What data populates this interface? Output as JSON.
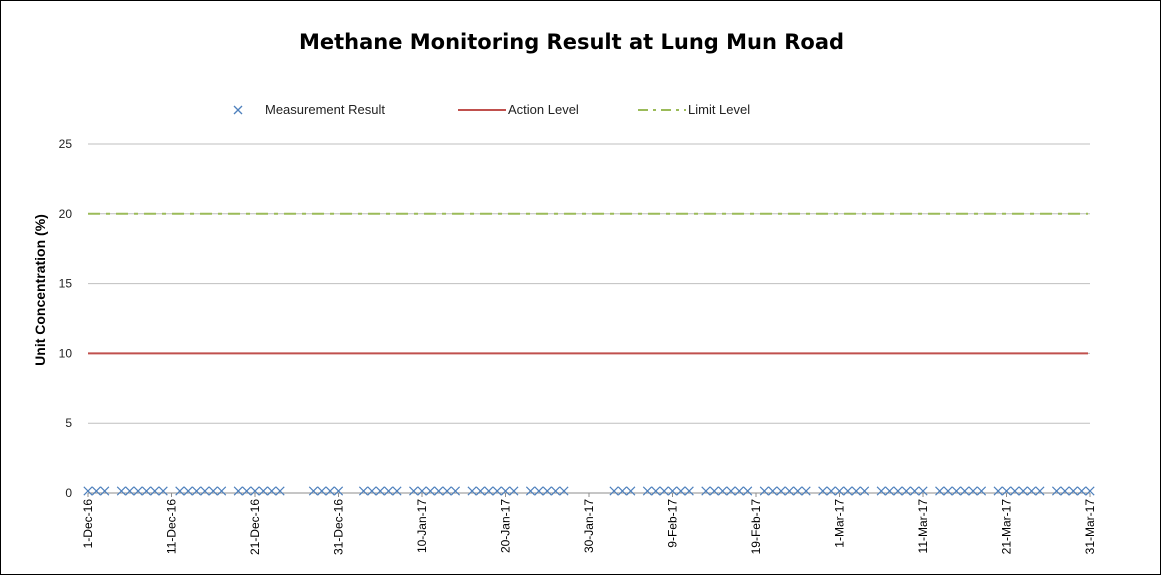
{
  "chart_data": {
    "type": "line",
    "title": "Methane Monitoring Result at Lung Mun Road",
    "xlabel": "",
    "ylabel": "Unit Concentration (%)",
    "ylim": [
      0,
      25
    ],
    "yticks": [
      "0",
      "5",
      "10",
      "15",
      "20",
      "25"
    ],
    "xlim": [
      "2016-12-01",
      "2017-03-31"
    ],
    "xtick_labels": [
      "1-Dec-16",
      "11-Dec-16",
      "21-Dec-16",
      "31-Dec-16",
      "10-Jan-17",
      "20-Jan-17",
      "30-Jan-17",
      "9-Feb-17",
      "19-Feb-17",
      "1-Mar-17",
      "11-Mar-17",
      "21-Mar-17",
      "31-Mar-17"
    ],
    "grid": true,
    "legend_position": "top",
    "series": [
      {
        "name": "Measurement Result",
        "kind": "scatter",
        "marker": "x",
        "color": "#4F81BD",
        "y_value": 0,
        "dates": [
          "2016-12-01",
          "2016-12-02",
          "2016-12-03",
          "2016-12-05",
          "2016-12-06",
          "2016-12-07",
          "2016-12-08",
          "2016-12-09",
          "2016-12-10",
          "2016-12-12",
          "2016-12-13",
          "2016-12-14",
          "2016-12-15",
          "2016-12-16",
          "2016-12-17",
          "2016-12-19",
          "2016-12-20",
          "2016-12-21",
          "2016-12-22",
          "2016-12-23",
          "2016-12-24",
          "2016-12-28",
          "2016-12-29",
          "2016-12-30",
          "2016-12-31",
          "2017-01-03",
          "2017-01-04",
          "2017-01-05",
          "2017-01-06",
          "2017-01-07",
          "2017-01-09",
          "2017-01-10",
          "2017-01-11",
          "2017-01-12",
          "2017-01-13",
          "2017-01-14",
          "2017-01-16",
          "2017-01-17",
          "2017-01-18",
          "2017-01-19",
          "2017-01-20",
          "2017-01-21",
          "2017-01-23",
          "2017-01-24",
          "2017-01-25",
          "2017-01-26",
          "2017-01-27",
          "2017-02-02",
          "2017-02-03",
          "2017-02-04",
          "2017-02-06",
          "2017-02-07",
          "2017-02-08",
          "2017-02-09",
          "2017-02-10",
          "2017-02-11",
          "2017-02-13",
          "2017-02-14",
          "2017-02-15",
          "2017-02-16",
          "2017-02-17",
          "2017-02-18",
          "2017-02-20",
          "2017-02-21",
          "2017-02-22",
          "2017-02-23",
          "2017-02-24",
          "2017-02-25",
          "2017-02-27",
          "2017-02-28",
          "2017-03-01",
          "2017-03-02",
          "2017-03-03",
          "2017-03-04",
          "2017-03-06",
          "2017-03-07",
          "2017-03-08",
          "2017-03-09",
          "2017-03-10",
          "2017-03-11",
          "2017-03-13",
          "2017-03-14",
          "2017-03-15",
          "2017-03-16",
          "2017-03-17",
          "2017-03-18",
          "2017-03-20",
          "2017-03-21",
          "2017-03-22",
          "2017-03-23",
          "2017-03-24",
          "2017-03-25",
          "2017-03-27",
          "2017-03-28",
          "2017-03-29",
          "2017-03-30",
          "2017-03-31"
        ]
      },
      {
        "name": "Action Level",
        "kind": "line",
        "color": "#C0504D",
        "dash": "solid",
        "y_value": 10
      },
      {
        "name": "Limit Level",
        "kind": "line",
        "color": "#9BBB59",
        "dash": "dash-dot",
        "y_value": 20
      }
    ]
  }
}
